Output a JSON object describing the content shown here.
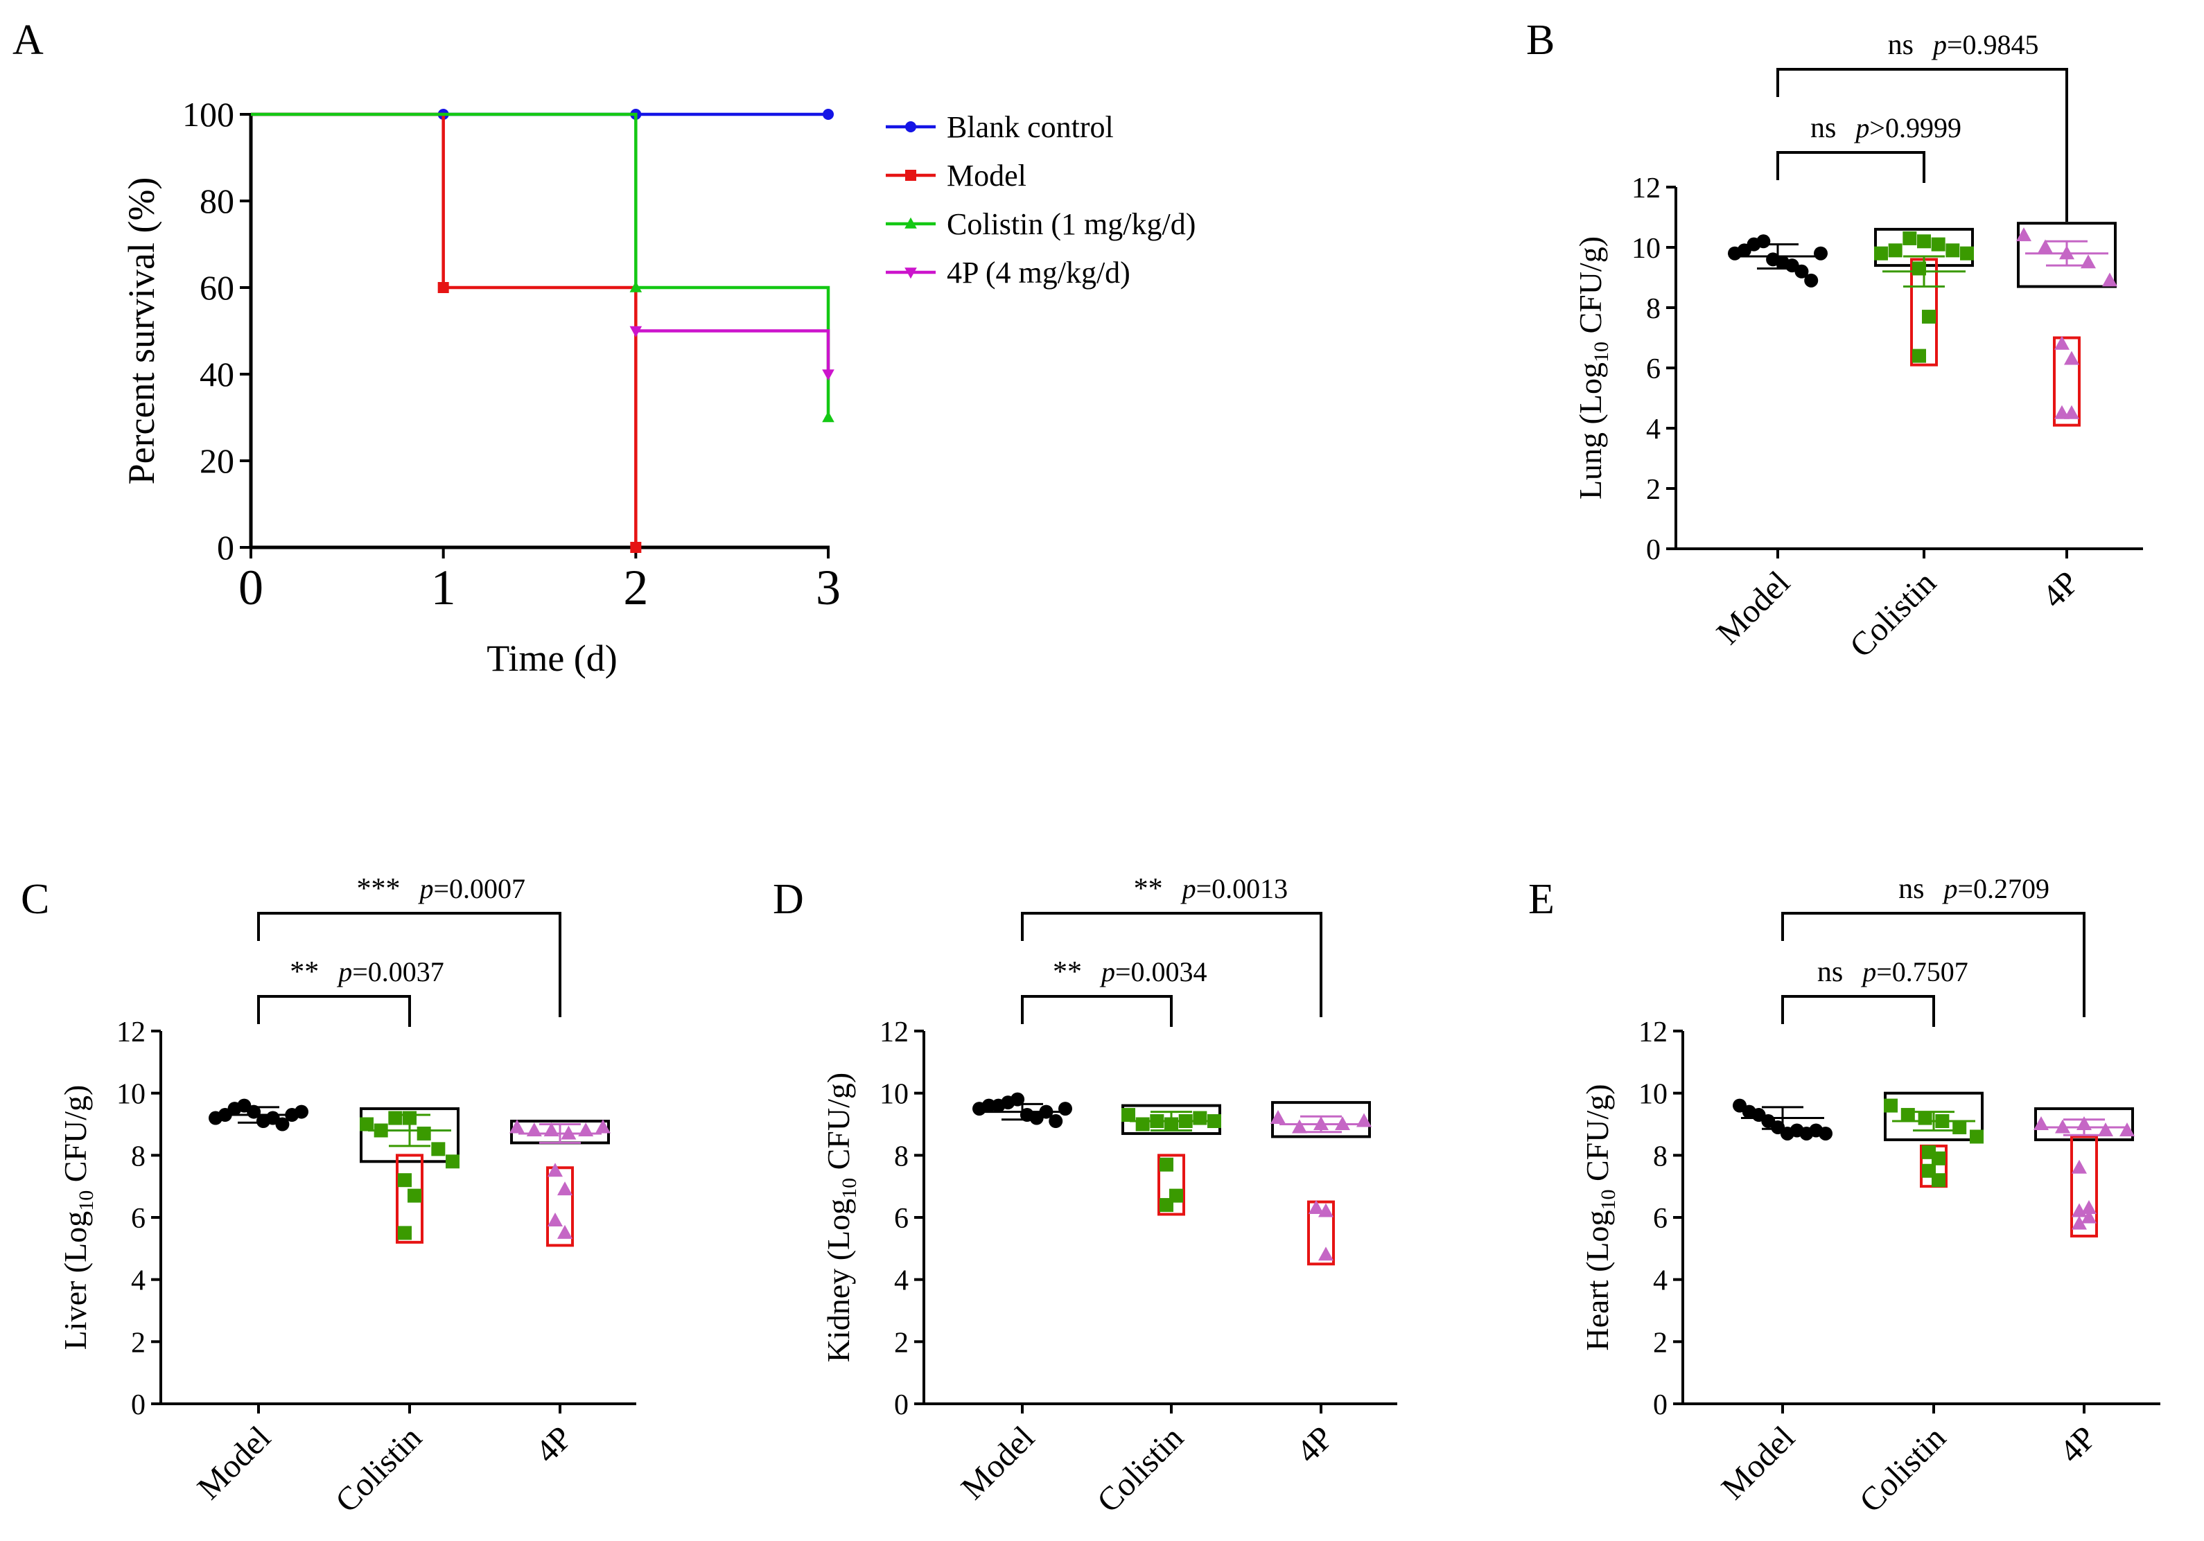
{
  "chart_data": [
    {
      "panel": "A",
      "type": "line",
      "subtype": "kaplan-meier",
      "title": "",
      "xlabel": "Time (d)",
      "ylabel": "Percent survival (%)",
      "xlim": [
        0,
        3
      ],
      "ylim": [
        0,
        100
      ],
      "xticks": [
        "0",
        "1",
        "2",
        "3"
      ],
      "yticks": [
        "0",
        "20",
        "40",
        "60",
        "80",
        "100"
      ],
      "legend_position": "right",
      "series": [
        {
          "name": "Blank control",
          "color": "#1414e6",
          "marker": "circle",
          "steps": [
            [
              0,
              100
            ],
            [
              3,
              100
            ]
          ],
          "markers": [
            [
              1,
              100
            ],
            [
              2,
              100
            ],
            [
              3,
              100
            ]
          ]
        },
        {
          "name": "Model",
          "color": "#e61414",
          "marker": "square",
          "steps": [
            [
              0,
              100
            ],
            [
              1,
              100
            ],
            [
              1,
              60
            ],
            [
              2,
              60
            ],
            [
              2,
              0
            ]
          ],
          "markers": [
            [
              1,
              60
            ],
            [
              2,
              0
            ]
          ]
        },
        {
          "name": "Colistin (1 mg/kg/d)",
          "color": "#14c814",
          "marker": "triangle-up",
          "steps": [
            [
              0,
              100
            ],
            [
              2,
              100
            ],
            [
              2,
              60
            ],
            [
              3,
              60
            ],
            [
              3,
              30
            ]
          ],
          "markers": [
            [
              2,
              60
            ],
            [
              3,
              30
            ]
          ]
        },
        {
          "name": "4P (4 mg/kg/d)",
          "color": "#cc14cc",
          "marker": "triangle-down",
          "steps": [
            [
              2,
              50
            ],
            [
              3,
              50
            ],
            [
              3,
              40
            ]
          ],
          "markers": [
            [
              2,
              50
            ],
            [
              3,
              40
            ]
          ]
        }
      ]
    },
    {
      "panel": "B",
      "type": "scatter",
      "ylabel_prefix": "Lung (Log",
      "ylabel_sub": "10",
      "ylabel_suffix": " CFU/g)",
      "ylim": [
        0,
        12
      ],
      "yticks": [
        "0",
        "2",
        "4",
        "6",
        "8",
        "10",
        "12"
      ],
      "categories": [
        "Model",
        "Colistin",
        "4P"
      ],
      "groups": [
        {
          "name": "Model",
          "color": "#000000",
          "marker": "circle",
          "values": [
            9.8,
            9.9,
            10.1,
            10.2,
            9.6,
            9.5,
            9.4,
            9.2,
            8.9,
            9.8
          ],
          "mean": 9.7,
          "sd": 0.4
        },
        {
          "name": "Colistin",
          "color": "#3a9a00",
          "marker": "square",
          "values": [
            9.8,
            9.9,
            10.3,
            10.2,
            10.1,
            9.9,
            9.8,
            9.3,
            7.7,
            6.4
          ],
          "mean": 9.2,
          "sd": 0.5,
          "high_box": [
            9.4,
            10.6
          ],
          "low_box": [
            6.1,
            9.6
          ]
        },
        {
          "name": "4P",
          "color": "#c566c5",
          "marker": "triangle-up",
          "values": [
            10.4,
            10.0,
            9.8,
            9.5,
            8.9,
            6.8,
            6.3,
            4.5,
            4.5
          ],
          "mean": 9.8,
          "sd": 0.4,
          "high_box": [
            8.7,
            10.8
          ],
          "low_box": [
            4.1,
            7.0
          ]
        }
      ],
      "comparisons": [
        {
          "from": "Model",
          "to": "Colistin",
          "stars": "ns",
          "p_label": "p",
          "p_value": ">0.9999"
        },
        {
          "from": "Model",
          "to": "4P",
          "stars": "ns",
          "p_label": "p",
          "p_value": "=0.9845"
        }
      ]
    },
    {
      "panel": "C",
      "type": "scatter",
      "ylabel_prefix": "Liver (Log",
      "ylabel_sub": "10",
      "ylabel_suffix": " CFU/g)",
      "ylim": [
        0,
        12
      ],
      "yticks": [
        "0",
        "2",
        "4",
        "6",
        "8",
        "10",
        "12"
      ],
      "categories": [
        "Model",
        "Colistin",
        "4P"
      ],
      "groups": [
        {
          "name": "Model",
          "color": "#000000",
          "marker": "circle",
          "values": [
            9.2,
            9.3,
            9.5,
            9.6,
            9.4,
            9.1,
            9.2,
            9.0,
            9.3,
            9.4
          ],
          "mean": 9.3,
          "sd": 0.25
        },
        {
          "name": "Colistin",
          "color": "#3a9a00",
          "marker": "square",
          "values": [
            9.0,
            8.8,
            9.2,
            9.2,
            8.7,
            8.2,
            7.8,
            7.2,
            6.7,
            5.5
          ],
          "mean": 8.8,
          "sd": 0.5,
          "high_box": [
            7.8,
            9.5
          ],
          "low_box": [
            5.2,
            8.0
          ]
        },
        {
          "name": "4P",
          "color": "#c566c5",
          "marker": "triangle-up",
          "values": [
            8.9,
            8.8,
            8.8,
            8.7,
            8.8,
            8.9,
            7.5,
            6.9,
            5.9,
            5.5
          ],
          "mean": 8.7,
          "sd": 0.3,
          "high_box": [
            8.4,
            9.1
          ],
          "low_box": [
            5.1,
            7.6
          ]
        }
      ],
      "comparisons": [
        {
          "from": "Model",
          "to": "Colistin",
          "stars": "**",
          "p_label": "p",
          "p_value": "=0.0037"
        },
        {
          "from": "Model",
          "to": "4P",
          "stars": "***",
          "p_label": "p",
          "p_value": "=0.0007"
        }
      ]
    },
    {
      "panel": "D",
      "type": "scatter",
      "ylabel_prefix": "Kidney (Log",
      "ylabel_sub": "10",
      "ylabel_suffix": " CFU/g)",
      "ylim": [
        0,
        12
      ],
      "yticks": [
        "0",
        "2",
        "4",
        "6",
        "8",
        "10",
        "12"
      ],
      "categories": [
        "Model",
        "Colistin",
        "4P"
      ],
      "groups": [
        {
          "name": "Model",
          "color": "#000000",
          "marker": "circle",
          "values": [
            9.5,
            9.6,
            9.6,
            9.7,
            9.8,
            9.3,
            9.2,
            9.4,
            9.1,
            9.5
          ],
          "mean": 9.4,
          "sd": 0.25
        },
        {
          "name": "Colistin",
          "color": "#3a9a00",
          "marker": "square",
          "values": [
            9.3,
            9.0,
            9.1,
            9.0,
            9.1,
            9.2,
            9.1,
            7.7,
            6.7,
            6.4
          ],
          "mean": 9.1,
          "sd": 0.3,
          "high_box": [
            8.7,
            9.6
          ],
          "low_box": [
            6.1,
            8.0
          ]
        },
        {
          "name": "4P",
          "color": "#c566c5",
          "marker": "triangle-up",
          "values": [
            9.2,
            8.9,
            9.0,
            9.0,
            9.1,
            6.3,
            6.2,
            6.3,
            4.8
          ],
          "mean": 9.0,
          "sd": 0.25,
          "high_box": [
            8.6,
            9.7
          ],
          "low_box": [
            4.5,
            6.5
          ]
        }
      ],
      "comparisons": [
        {
          "from": "Model",
          "to": "Colistin",
          "stars": "**",
          "p_label": "p",
          "p_value": "=0.0034"
        },
        {
          "from": "Model",
          "to": "4P",
          "stars": "**",
          "p_label": "p",
          "p_value": "=0.0013"
        }
      ]
    },
    {
      "panel": "E",
      "type": "scatter",
      "ylabel_prefix": "Heart (Log",
      "ylabel_sub": "10",
      "ylabel_suffix": " CFU/g)",
      "ylim": [
        0,
        12
      ],
      "yticks": [
        "0",
        "2",
        "4",
        "6",
        "8",
        "10",
        "12"
      ],
      "categories": [
        "Model",
        "Colistin",
        "4P"
      ],
      "groups": [
        {
          "name": "Model",
          "color": "#000000",
          "marker": "circle",
          "values": [
            9.6,
            9.4,
            9.3,
            9.1,
            8.9,
            8.7,
            8.8,
            8.7,
            8.8,
            8.7
          ],
          "mean": 9.2,
          "sd": 0.35
        },
        {
          "name": "Colistin",
          "color": "#3a9a00",
          "marker": "square",
          "values": [
            9.6,
            9.3,
            9.2,
            9.1,
            8.9,
            8.6,
            8.1,
            7.9,
            7.5,
            7.2
          ],
          "mean": 9.1,
          "sd": 0.3,
          "high_box": [
            8.5,
            10.0
          ],
          "low_box": [
            7.0,
            8.3
          ]
        },
        {
          "name": "4P",
          "color": "#c566c5",
          "marker": "triangle-up",
          "values": [
            9.0,
            8.9,
            9.0,
            8.8,
            8.8,
            7.6,
            6.3,
            6.2,
            6.0,
            5.8
          ],
          "mean": 8.9,
          "sd": 0.25,
          "high_box": [
            8.5,
            9.5
          ],
          "low_box": [
            5.4,
            8.6
          ]
        }
      ],
      "comparisons": [
        {
          "from": "Model",
          "to": "Colistin",
          "stars": "ns",
          "p_label": "p",
          "p_value": "=0.7507"
        },
        {
          "from": "Model",
          "to": "4P",
          "stars": "ns",
          "p_label": "p",
          "p_value": "=0.2709"
        }
      ]
    }
  ],
  "colors": {
    "highlight_box_high": "#000000",
    "highlight_box_low": "#e61414"
  }
}
